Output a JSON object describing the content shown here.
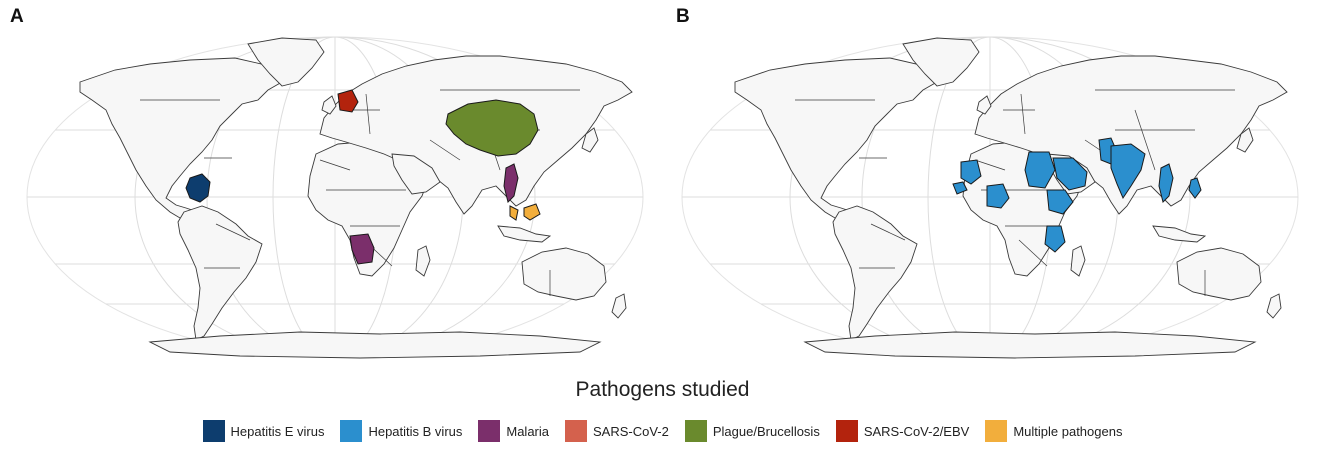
{
  "panels": [
    {
      "label": "A",
      "highlights": [
        {
          "country": "Colombia",
          "pathogen": "Hepatitis E virus"
        },
        {
          "country": "Angola",
          "pathogen": "Malaria"
        },
        {
          "country": "Vietnam",
          "pathogen": "Malaria"
        },
        {
          "country": "Germany",
          "pathogen": "SARS-CoV-2/EBV"
        },
        {
          "country": "China",
          "pathogen": "Plague/Brucellosis"
        },
        {
          "country": "Malaysia",
          "pathogen": "Multiple pathogens"
        }
      ]
    },
    {
      "label": "B",
      "highlights": [
        {
          "country": "Mauritania",
          "pathogen": "Hepatitis B virus"
        },
        {
          "country": "Senegal/Gambia",
          "pathogen": "Hepatitis B virus"
        },
        {
          "country": "Nigeria",
          "pathogen": "Hepatitis B virus"
        },
        {
          "country": "Sudan",
          "pathogen": "Hepatitis B virus"
        },
        {
          "country": "Saudi Arabia",
          "pathogen": "Hepatitis B virus"
        },
        {
          "country": "Ethiopia",
          "pathogen": "Hepatitis B virus"
        },
        {
          "country": "Tanzania",
          "pathogen": "Hepatitis B virus"
        },
        {
          "country": "Pakistan",
          "pathogen": "Hepatitis B virus"
        },
        {
          "country": "India",
          "pathogen": "Hepatitis B virus"
        },
        {
          "country": "Vietnam",
          "pathogen": "Hepatitis B virus"
        },
        {
          "country": "Philippines",
          "pathogen": "Hepatitis B virus"
        }
      ]
    }
  ],
  "legend": {
    "title": "Pathogens studied",
    "items": [
      {
        "label": "Hepatitis E virus",
        "color": "#0d3d6e"
      },
      {
        "label": "Hepatitis B virus",
        "color": "#2b8fce"
      },
      {
        "label": "Malaria",
        "color": "#7b2f6b"
      },
      {
        "label": "SARS-CoV-2",
        "color": "#d4614d"
      },
      {
        "label": "Plague/Brucellosis",
        "color": "#6a8a2d"
      },
      {
        "label": "SARS-CoV-2/EBV",
        "color": "#b3230d"
      },
      {
        "label": "Multiple pathogens",
        "color": "#f2ae3c"
      }
    ]
  }
}
